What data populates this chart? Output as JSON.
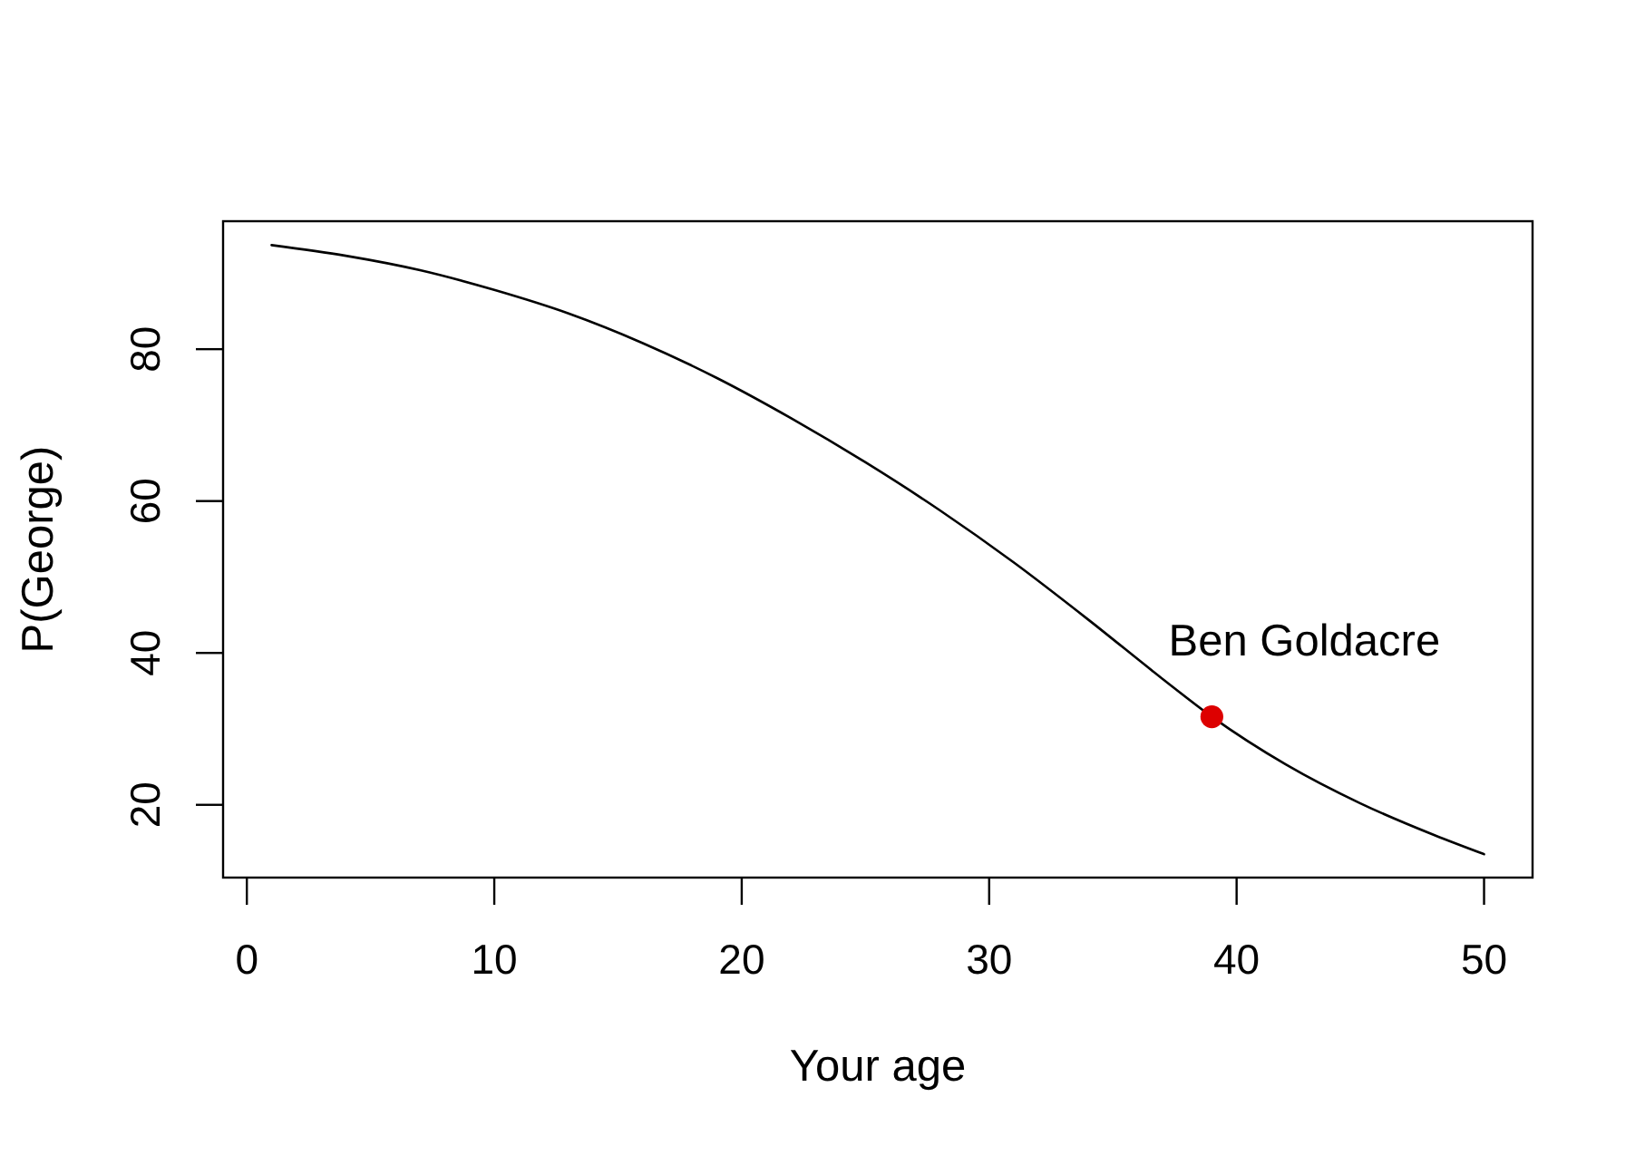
{
  "chart_data": {
    "type": "line",
    "xlabel": "Your age",
    "ylabel": "P(George)",
    "xlim": [
      -0.96,
      51.96
    ],
    "ylim": [
      10.42,
      96.85
    ],
    "xticks": [
      0,
      10,
      20,
      30,
      40,
      50
    ],
    "yticks": [
      20,
      40,
      60,
      80
    ],
    "series": [
      {
        "color": "#000000",
        "x": [
          1,
          4,
          7,
          10,
          13,
          16,
          19,
          22,
          25,
          28,
          31,
          34,
          37,
          39,
          42,
          45,
          48,
          50
        ],
        "values": [
          93.7,
          92.3,
          90.4,
          87.8,
          84.7,
          80.8,
          76.2,
          70.9,
          65.1,
          58.8,
          51.9,
          44.4,
          36.6,
          31.6,
          25.3,
          20.2,
          16.0,
          13.5
        ]
      },
      {
        "type": "scatter",
        "color": "#dd0000",
        "marker": "circle",
        "x": [
          39
        ],
        "values": [
          31.6
        ]
      }
    ],
    "annotations": [
      {
        "text": "Ben Goldacre",
        "x": 39,
        "y": 31.6
      }
    ]
  }
}
